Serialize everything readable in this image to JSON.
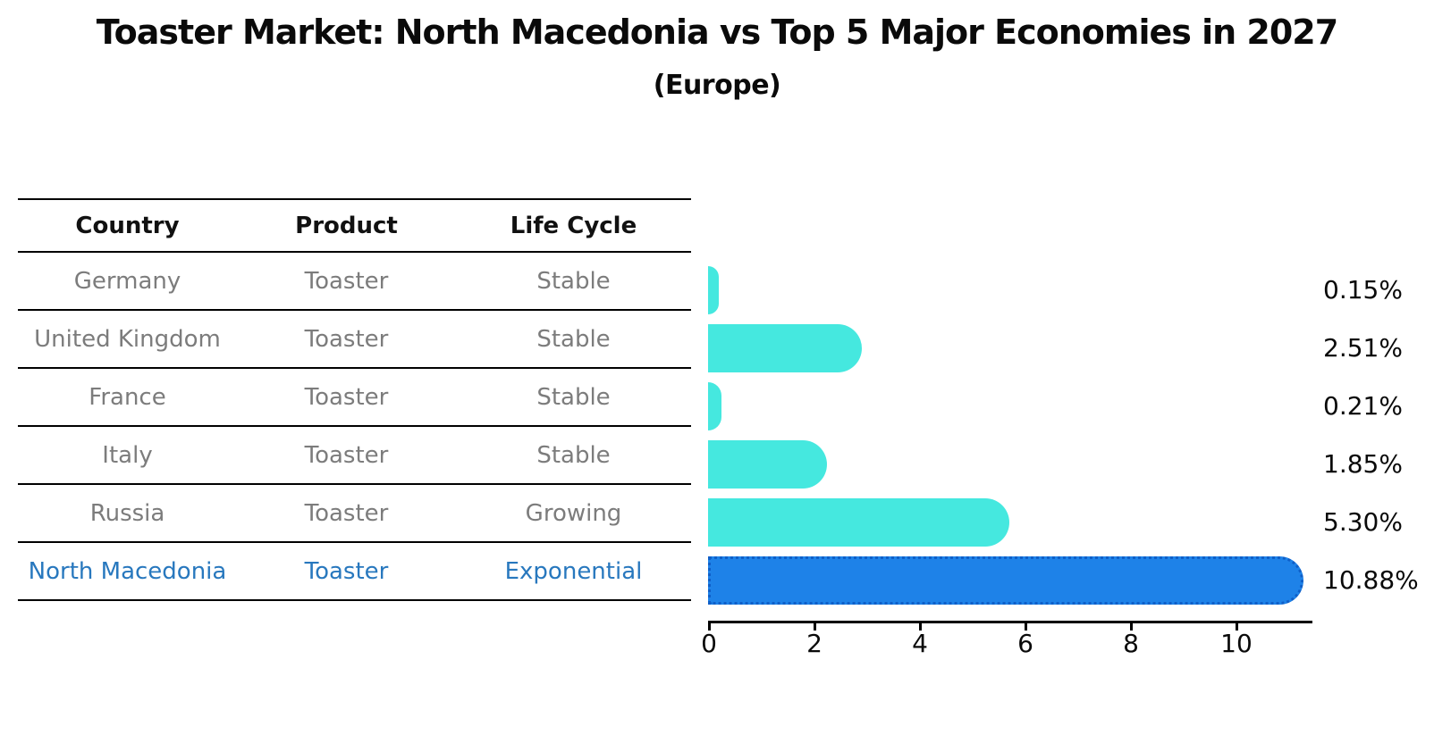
{
  "title": "Toaster Market: North Macedonia vs Top 5 Major Economies in 2027",
  "subtitle": "(Europe)",
  "table": {
    "headers": [
      "Country",
      "Product",
      "Life Cycle"
    ],
    "rows": [
      {
        "country": "Germany",
        "product": "Toaster",
        "life_cycle": "Stable",
        "highlight": false
      },
      {
        "country": "United Kingdom",
        "product": "Toaster",
        "life_cycle": "Stable",
        "highlight": false
      },
      {
        "country": "France",
        "product": "Toaster",
        "life_cycle": "Stable",
        "highlight": false
      },
      {
        "country": "Italy",
        "product": "Toaster",
        "life_cycle": "Stable",
        "highlight": false
      },
      {
        "country": "Russia",
        "product": "Toaster",
        "life_cycle": "Growing",
        "highlight": false
      },
      {
        "country": "North Macedonia",
        "product": "Toaster",
        "life_cycle": "Exponential",
        "highlight": true
      }
    ]
  },
  "chart_data": {
    "type": "bar",
    "orientation": "horizontal",
    "title": "Toaster Market: North Macedonia vs Top 5 Major Economies in 2027",
    "subtitle": "(Europe)",
    "categories": [
      "Germany",
      "United Kingdom",
      "France",
      "Italy",
      "Russia",
      "North Macedonia"
    ],
    "values": [
      0.15,
      2.51,
      0.21,
      1.85,
      5.3,
      10.88
    ],
    "value_labels": [
      "0.15%",
      "2.51%",
      "0.21%",
      "1.85%",
      "5.30%",
      "10.88%"
    ],
    "x_ticks": [
      0,
      2,
      4,
      6,
      8,
      10
    ],
    "xlim": [
      0,
      11.43
    ],
    "grid": false,
    "legend": false,
    "highlight_index": 5,
    "bar_color": "#45e8df",
    "highlight_bar_color": "#1e82e8",
    "highlight_text_color": "#2878be",
    "row_text_color": "#7c7c7c"
  }
}
